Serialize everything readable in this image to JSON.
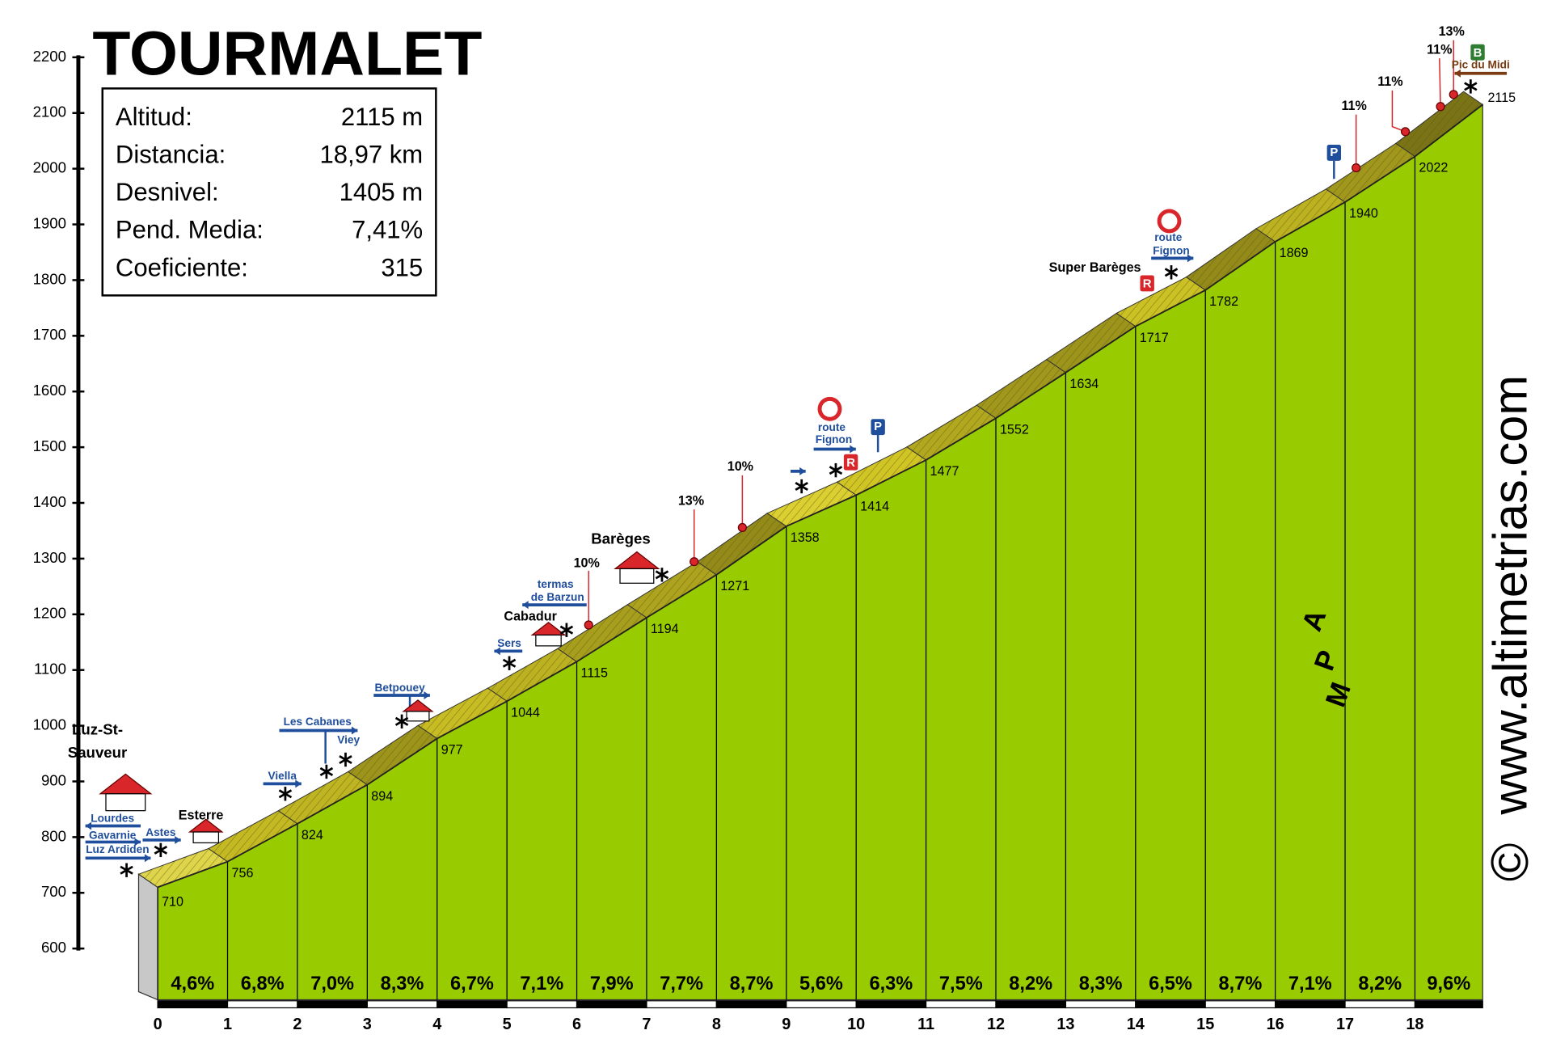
{
  "chart_data": {
    "type": "area",
    "title": "TOURMALET",
    "x": [
      0,
      1,
      2,
      3,
      4,
      5,
      6,
      7,
      8,
      9,
      10,
      11,
      12,
      13,
      14,
      15,
      16,
      17,
      18,
      18.97
    ],
    "values": [
      710,
      756,
      824,
      894,
      977,
      1044,
      1115,
      1194,
      1271,
      1358,
      1414,
      1477,
      1552,
      1634,
      1717,
      1782,
      1869,
      1940,
      2022,
      2115
    ],
    "xlim": [
      0,
      18.97
    ],
    "xticks": [
      0,
      1,
      2,
      3,
      4,
      5,
      6,
      7,
      8,
      9,
      10,
      11,
      12,
      13,
      14,
      15,
      16,
      17,
      18
    ],
    "ylim": [
      600,
      2200
    ],
    "yticks": [
      600,
      700,
      800,
      900,
      1000,
      1100,
      1200,
      1300,
      1400,
      1500,
      1600,
      1700,
      1800,
      1900,
      2000,
      2100,
      2200
    ],
    "color": "#99cc00",
    "gradients": {
      "values": [
        4.6,
        6.8,
        7.0,
        8.3,
        6.7,
        7.1,
        7.9,
        7.7,
        8.7,
        5.6,
        6.3,
        7.5,
        8.2,
        8.3,
        6.5,
        8.7,
        7.1,
        8.2,
        9.6
      ],
      "value_labels": [
        "4,6%",
        "6,8%",
        "7,0%",
        "8,3%",
        "6,7%",
        "7,1%",
        "7,9%",
        "7,7%",
        "8,7%",
        "5,6%",
        "6,3%",
        "7,5%",
        "8,2%",
        "8,3%",
        "6,5%",
        "8,7%",
        "7,1%",
        "8,2%",
        "9,6%"
      ]
    },
    "info": [
      [
        "Altitud:",
        "2115 m"
      ],
      [
        "Distancia:",
        "18,97 km"
      ],
      [
        "Desnivel:",
        "1405 m"
      ],
      [
        "Pend. Media:",
        "7,41%"
      ],
      [
        "Coeficiente:",
        "315"
      ]
    ],
    "annotations": [
      "Luz-St-",
      "Sauveur",
      "Lourdes",
      "Gavarnie",
      "Luz Ardiden",
      "Astes",
      "Esterre",
      "Viella",
      "Les Cabanes",
      "Viey",
      "Betpouey",
      "Sers",
      "termas",
      "de Barzun",
      "Cabadur",
      "Barèges",
      "10%",
      "13%",
      "10%",
      "route",
      "Fignon",
      "Super Barèges",
      "route",
      "Fignon",
      "11%",
      "11%",
      "11%",
      "13%",
      "Pic du Midi",
      "P",
      "P",
      "R",
      "R",
      "B"
    ],
    "logo": [
      "A",
      "P",
      "M"
    ],
    "watermark": "www.altimetrias.com",
    "copyright": "©"
  }
}
